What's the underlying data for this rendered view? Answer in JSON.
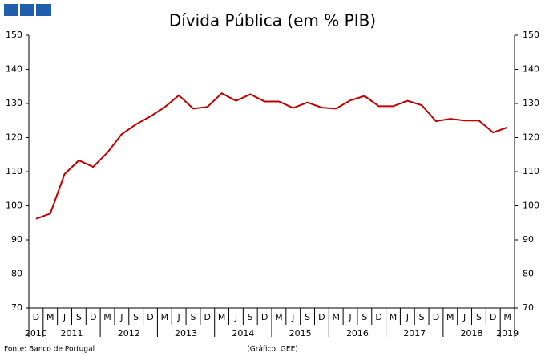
{
  "chart_data": {
    "type": "line",
    "title": "Dívida Pública (em % PIB)",
    "categories": [
      "D",
      "M",
      "J",
      "S",
      "D",
      "M",
      "J",
      "S",
      "D",
      "M",
      "J",
      "S",
      "D",
      "M",
      "J",
      "S",
      "D",
      "M",
      "J",
      "S",
      "D",
      "M",
      "J",
      "S",
      "D",
      "M",
      "J",
      "S",
      "D",
      "M",
      "J",
      "S",
      "D",
      "M"
    ],
    "years": [
      "2010",
      "2011",
      "2012",
      "2013",
      "2014",
      "2015",
      "2016",
      "2017",
      "2018",
      "2019"
    ],
    "series": [
      {
        "color": "#c00000",
        "values": [
          96.2,
          97.7,
          109.3,
          113.3,
          111.4,
          115.6,
          121,
          123.9,
          126.2,
          128.9,
          132.4,
          128.5,
          129,
          133,
          130.8,
          132.7,
          130.6,
          130.6,
          128.7,
          130.3,
          128.8,
          128.5,
          130.9,
          132.2,
          129.2,
          129.2,
          130.8,
          129.5,
          124.8,
          125.5,
          125,
          125,
          121.5,
          123
        ]
      }
    ],
    "ylim": [
      70,
      150
    ],
    "yticks": [
      70,
      80,
      90,
      100,
      110,
      120,
      130,
      140,
      150
    ],
    "y2lim": [
      70,
      150
    ],
    "y2ticks": [
      70,
      80,
      90,
      100,
      110,
      120,
      130,
      140,
      150
    ]
  },
  "source": "Fonte: Banco de Portugal",
  "credit": "(Gráfico: GEE)"
}
